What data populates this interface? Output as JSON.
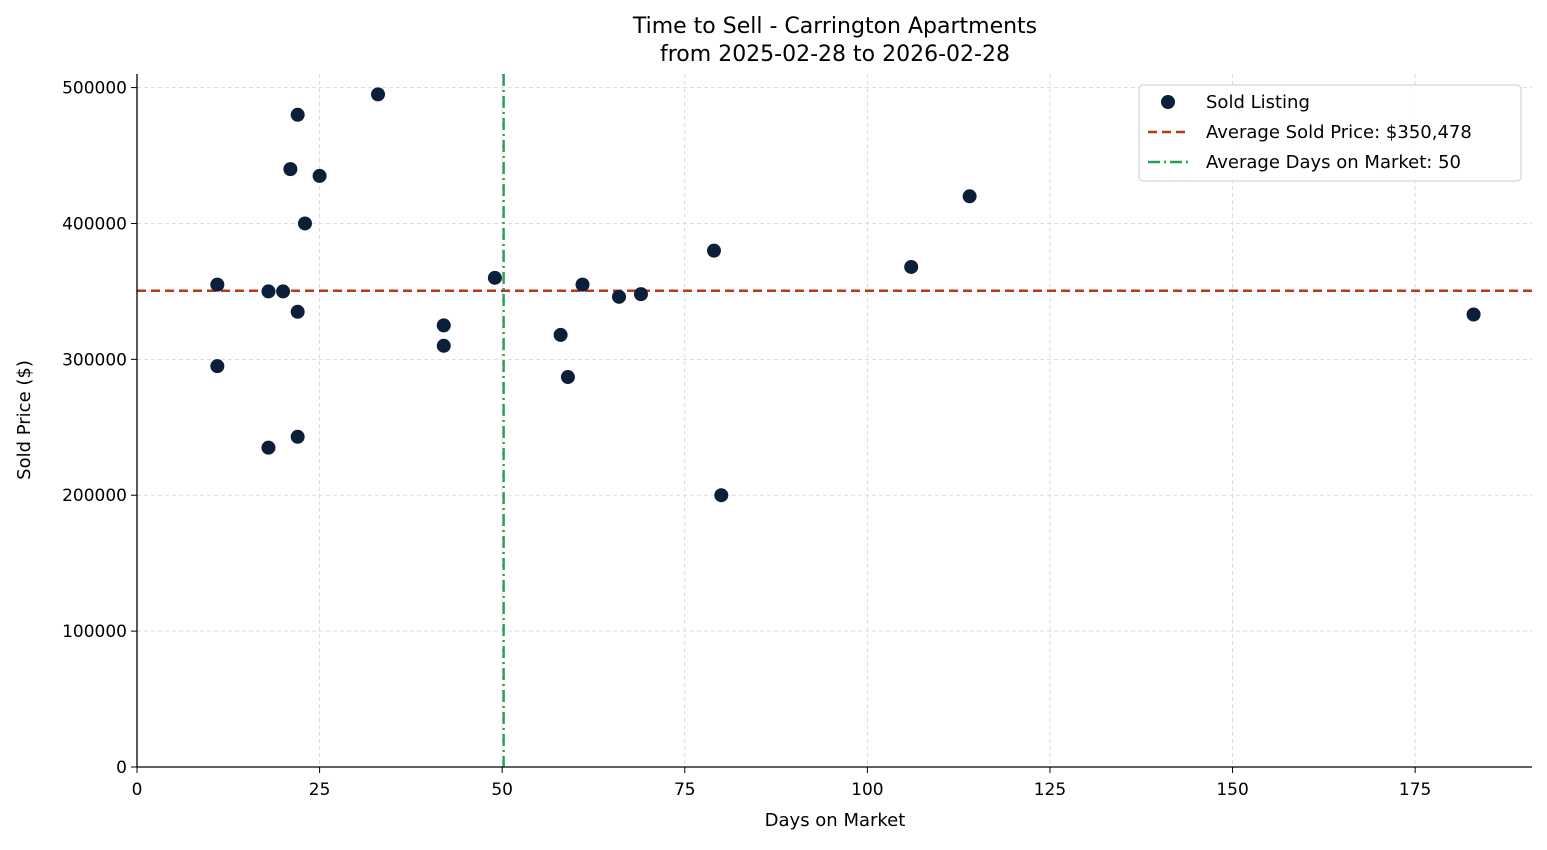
{
  "chart_data": {
    "type": "scatter",
    "title": "Time to Sell - Carrington Apartments",
    "subtitle": "from 2025-02-28 to 2026-02-28",
    "xlabel": "Days on Market",
    "ylabel": "Sold Price ($)",
    "xlim": [
      0,
      191
    ],
    "ylim": [
      0,
      510000
    ],
    "xticks": [
      0,
      25,
      50,
      75,
      100,
      125,
      150,
      175
    ],
    "yticks": [
      0,
      100000,
      200000,
      300000,
      400000,
      500000
    ],
    "grid": true,
    "legend_position": "top-right",
    "series": [
      {
        "name": "Sold Listing",
        "color": "#0b1f3a",
        "points": [
          {
            "x": 11,
            "y": 355000
          },
          {
            "x": 11,
            "y": 295000
          },
          {
            "x": 18,
            "y": 350000
          },
          {
            "x": 18,
            "y": 235000
          },
          {
            "x": 20,
            "y": 350000
          },
          {
            "x": 21,
            "y": 440000
          },
          {
            "x": 22,
            "y": 480000
          },
          {
            "x": 22,
            "y": 335000
          },
          {
            "x": 22,
            "y": 243000
          },
          {
            "x": 23,
            "y": 400000
          },
          {
            "x": 25,
            "y": 435000
          },
          {
            "x": 33,
            "y": 495000
          },
          {
            "x": 42,
            "y": 325000
          },
          {
            "x": 42,
            "y": 310000
          },
          {
            "x": 49,
            "y": 360000
          },
          {
            "x": 58,
            "y": 318000
          },
          {
            "x": 59,
            "y": 287000
          },
          {
            "x": 61,
            "y": 355000
          },
          {
            "x": 66,
            "y": 346000
          },
          {
            "x": 69,
            "y": 348000
          },
          {
            "x": 79,
            "y": 380000
          },
          {
            "x": 80,
            "y": 200000
          },
          {
            "x": 106,
            "y": 368000
          },
          {
            "x": 114,
            "y": 420000
          },
          {
            "x": 183,
            "y": 333000
          }
        ]
      }
    ],
    "reference_lines": [
      {
        "name": "Average Sold Price: $350,478",
        "orientation": "horizontal",
        "value": 350478,
        "color": "#b5391f",
        "style": "dashed"
      },
      {
        "name": "Average Days on Market: 50",
        "orientation": "vertical",
        "value": 50.2,
        "color": "#27a05a",
        "style": "dash-dot"
      }
    ]
  }
}
